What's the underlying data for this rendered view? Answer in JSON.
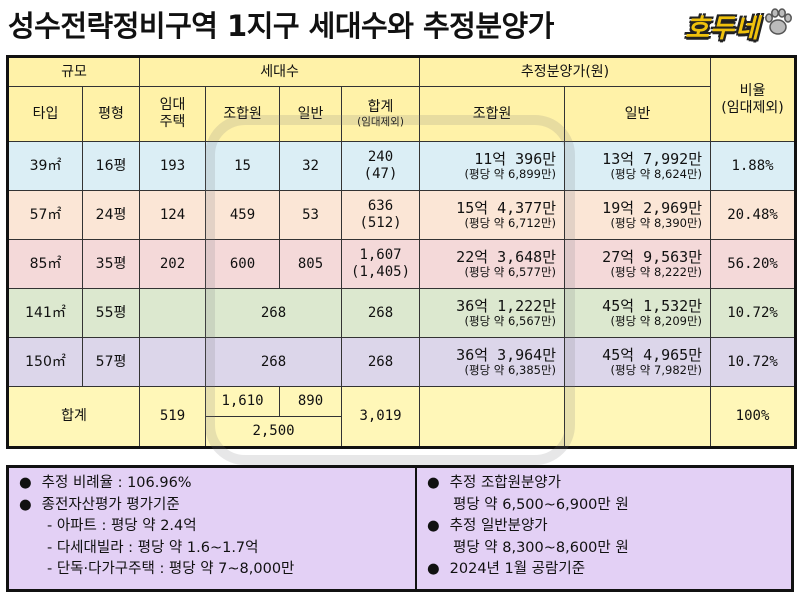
{
  "title": "성수전략정비구역 1지구 세대수와 추정분양가",
  "brand": "호두네",
  "table": {
    "group_headers": {
      "scale": "규모",
      "households": "세대수",
      "est_price": "추정분양가(원)",
      "ratio": "비율"
    },
    "ratio_note": "(임대제외)",
    "sub_headers": {
      "type": "타입",
      "pyeong": "평형",
      "rental": "임대\n주택",
      "union": "조합원",
      "general": "일반",
      "total": "합계",
      "total_note": "(임대제외)",
      "price_union": "조합원",
      "price_general": "일반"
    },
    "rows": [
      {
        "type": "39㎡",
        "pyeong": "16평",
        "rental": "193",
        "union": "15",
        "general": "32",
        "total": "240",
        "total_note": "(47)",
        "price_union": "11억 396만",
        "price_union_note": "(평당 약 6,899만)",
        "price_general": "13억 7,992만",
        "price_general_note": "(평당 약 8,624만)",
        "ratio": "1.88%"
      },
      {
        "type": "57㎡",
        "pyeong": "24평",
        "rental": "124",
        "union": "459",
        "general": "53",
        "total": "636",
        "total_note": "(512)",
        "price_union": "15억 4,377만",
        "price_union_note": "(평당 약 6,712만)",
        "price_general": "19억 2,969만",
        "price_general_note": "(평당 약 8,390만)",
        "ratio": "20.48%"
      },
      {
        "type": "85㎡",
        "pyeong": "35평",
        "rental": "202",
        "union": "600",
        "general": "805",
        "total": "1,607",
        "total_note": "(1,405)",
        "price_union": "22억 3,648만",
        "price_union_note": "(평당 약 6,577만)",
        "price_general": "27억 9,563만",
        "price_general_note": "(평당 약 8,222만)",
        "ratio": "56.20%"
      },
      {
        "type": "141㎡",
        "pyeong": "55평",
        "rental": "",
        "merged": "268",
        "total": "268",
        "total_note": "",
        "price_union": "36억 1,222만",
        "price_union_note": "(평당 약 6,567만)",
        "price_general": "45억 1,532만",
        "price_general_note": "(평당 약 8,209만)",
        "ratio": "10.72%"
      },
      {
        "type": "150㎡",
        "pyeong": "57평",
        "rental": "",
        "merged": "268",
        "total": "268",
        "total_note": "",
        "price_union": "36억 3,964만",
        "price_union_note": "(평당 약 6,385만)",
        "price_general": "45억 4,965만",
        "price_general_note": "(평당 약 7,982만)",
        "ratio": "10.72%"
      }
    ],
    "total_row": {
      "label": "합계",
      "rental": "519",
      "union": "1,610",
      "general": "890",
      "combined": "2,500",
      "total": "3,019",
      "ratio": "100%"
    }
  },
  "notes_left": [
    "추정 비례율 : 106.96%",
    "종전자산평가 평가기준",
    "- 아파트 : 평당 약 2.4억",
    "- 다세대빌라 : 평당 약 1.6~1.7억",
    "- 단독·다가구주택 : 평당 약 7~8,000만"
  ],
  "notes_right": [
    "추정 조합원분양가",
    "평당 약 6,500~6,900만 원",
    "추정 일반분양가",
    "평당 약 8,300~8,600만 원",
    "2024년 1월 공람기준"
  ],
  "colors": {
    "header": "#fff2a8",
    "row_39": "#dbeef5",
    "row_57": "#fbe6d6",
    "row_85": "#f4d9d9",
    "row_141": "#dce8cf",
    "row_150": "#dcd6ea",
    "footer": "#e3d0f5",
    "brand": "#f0c20c"
  },
  "icons": {
    "brand_icon": "paw-icon"
  }
}
